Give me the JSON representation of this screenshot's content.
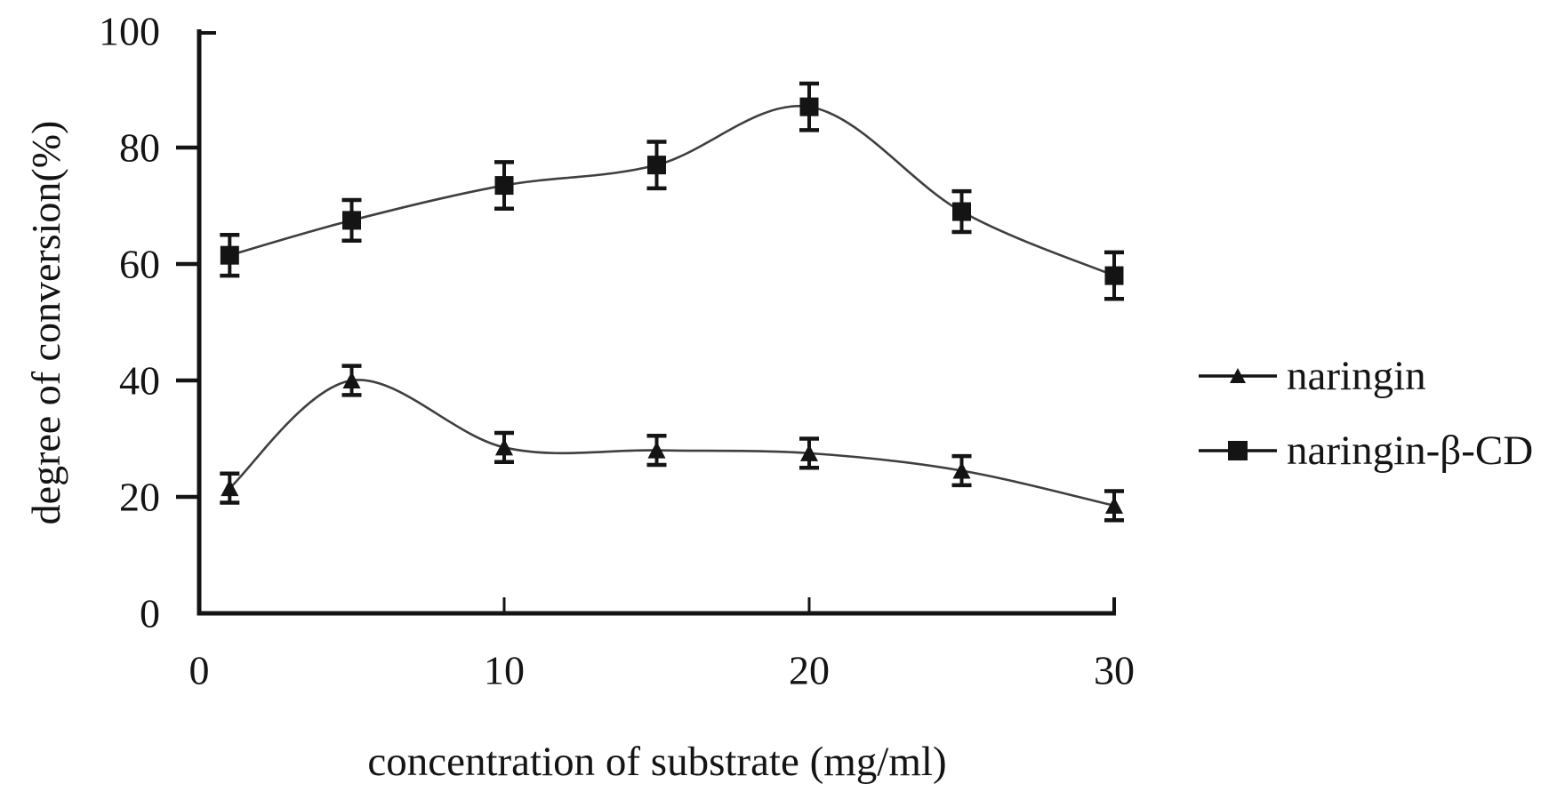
{
  "chart_data": {
    "type": "line",
    "line_style": "smooth",
    "grid": false,
    "legend_position": "right-outside",
    "xlabel": "concentration of substrate (mg/ml)",
    "ylabel": "degree of conversion(%)",
    "xlim": [
      0,
      30
    ],
    "ylim": [
      0,
      100
    ],
    "x_ticks": [
      0,
      10,
      20,
      30
    ],
    "y_ticks": [
      0,
      20,
      40,
      60,
      80,
      100
    ],
    "x": [
      1,
      5,
      10,
      15,
      20,
      25,
      30
    ],
    "series": [
      {
        "name": "naringin",
        "marker": "triangle",
        "values": [
          21.5,
          40,
          28.5,
          28,
          27.5,
          24.5,
          18.5
        ],
        "errors": [
          2.5,
          2.5,
          2.5,
          2.5,
          2.5,
          2.5,
          2.5
        ]
      },
      {
        "name": "naringin-β-CD",
        "marker": "square",
        "values": [
          61.5,
          67.5,
          73.5,
          77,
          87,
          69,
          58
        ],
        "errors": [
          3.5,
          3.5,
          4,
          4,
          4,
          3.5,
          4
        ]
      }
    ],
    "colors": {
      "background": "#ffffff",
      "axis": "#141414",
      "text": "#141414",
      "line": "#3f3f3f",
      "marker": "#141414",
      "error_bar": "#141414"
    }
  }
}
